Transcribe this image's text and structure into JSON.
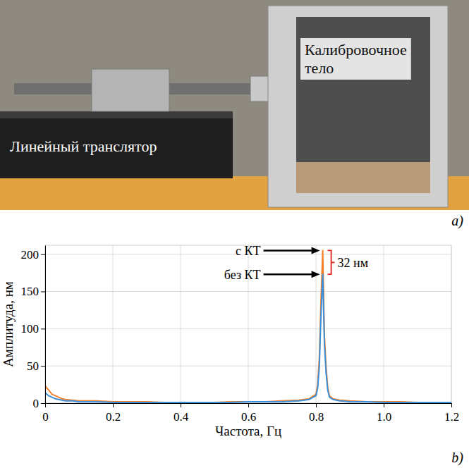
{
  "photo": {
    "translator_label": "Линейный транслятор",
    "body_label": [
      "Калибровочное",
      "тело"
    ],
    "panel_label": "a)"
  },
  "chart_data": {
    "type": "line",
    "panel_label": "b)",
    "x_label": "Частота, Гц",
    "y_label": "Амплитуда, нм",
    "x": [
      0,
      0.005,
      0.01,
      0.02,
      0.03,
      0.04,
      0.05,
      0.06,
      0.08,
      0.1,
      0.15,
      0.2,
      0.25,
      0.3,
      0.35,
      0.4,
      0.45,
      0.5,
      0.55,
      0.6,
      0.65,
      0.7,
      0.75,
      0.78,
      0.8,
      0.805,
      0.81,
      0.815,
      0.82,
      0.825,
      0.83,
      0.835,
      0.84,
      0.85,
      0.87,
      0.9,
      0.95,
      1.0,
      1.05,
      1.1,
      1.15,
      1.2
    ],
    "series": [
      {
        "color": "#f5822a",
        "values": [
          24,
          20,
          18,
          12,
          10,
          8,
          6,
          5,
          4,
          3,
          3,
          2,
          2,
          2,
          1,
          1,
          1,
          1,
          2,
          2,
          2,
          3,
          4,
          6,
          12,
          25,
          60,
          140,
          205,
          90,
          48,
          20,
          10,
          6,
          4,
          3,
          2,
          2,
          2,
          1,
          1,
          1
        ]
      },
      {
        "color": "#3d8fd9",
        "values": [
          14,
          12,
          10,
          8,
          6,
          5,
          4,
          3,
          3,
          2,
          2,
          1,
          1,
          1,
          1,
          1,
          1,
          1,
          1,
          2,
          2,
          2,
          3,
          5,
          10,
          20,
          50,
          120,
          173,
          80,
          40,
          17,
          8,
          5,
          3,
          2,
          2,
          1,
          1,
          1,
          1,
          1
        ]
      }
    ],
    "xlim": [
      0,
      1.2
    ],
    "xticks": [
      0,
      0.2,
      0.4,
      0.6,
      0.8,
      {
        "value": 1,
        "label": "1.0"
      },
      1.2
    ],
    "ylim": [
      0,
      212
    ],
    "yticks": [
      0,
      50,
      100,
      150,
      200
    ],
    "grid": true,
    "annotations": [
      {
        "text": "с КТ",
        "x": 0.82,
        "y": 205
      },
      {
        "text": "без КТ",
        "x": 0.82,
        "y": 173
      },
      {
        "text": "32 нм",
        "x": 0.82,
        "y_from": 173,
        "y_to": 205
      }
    ]
  }
}
